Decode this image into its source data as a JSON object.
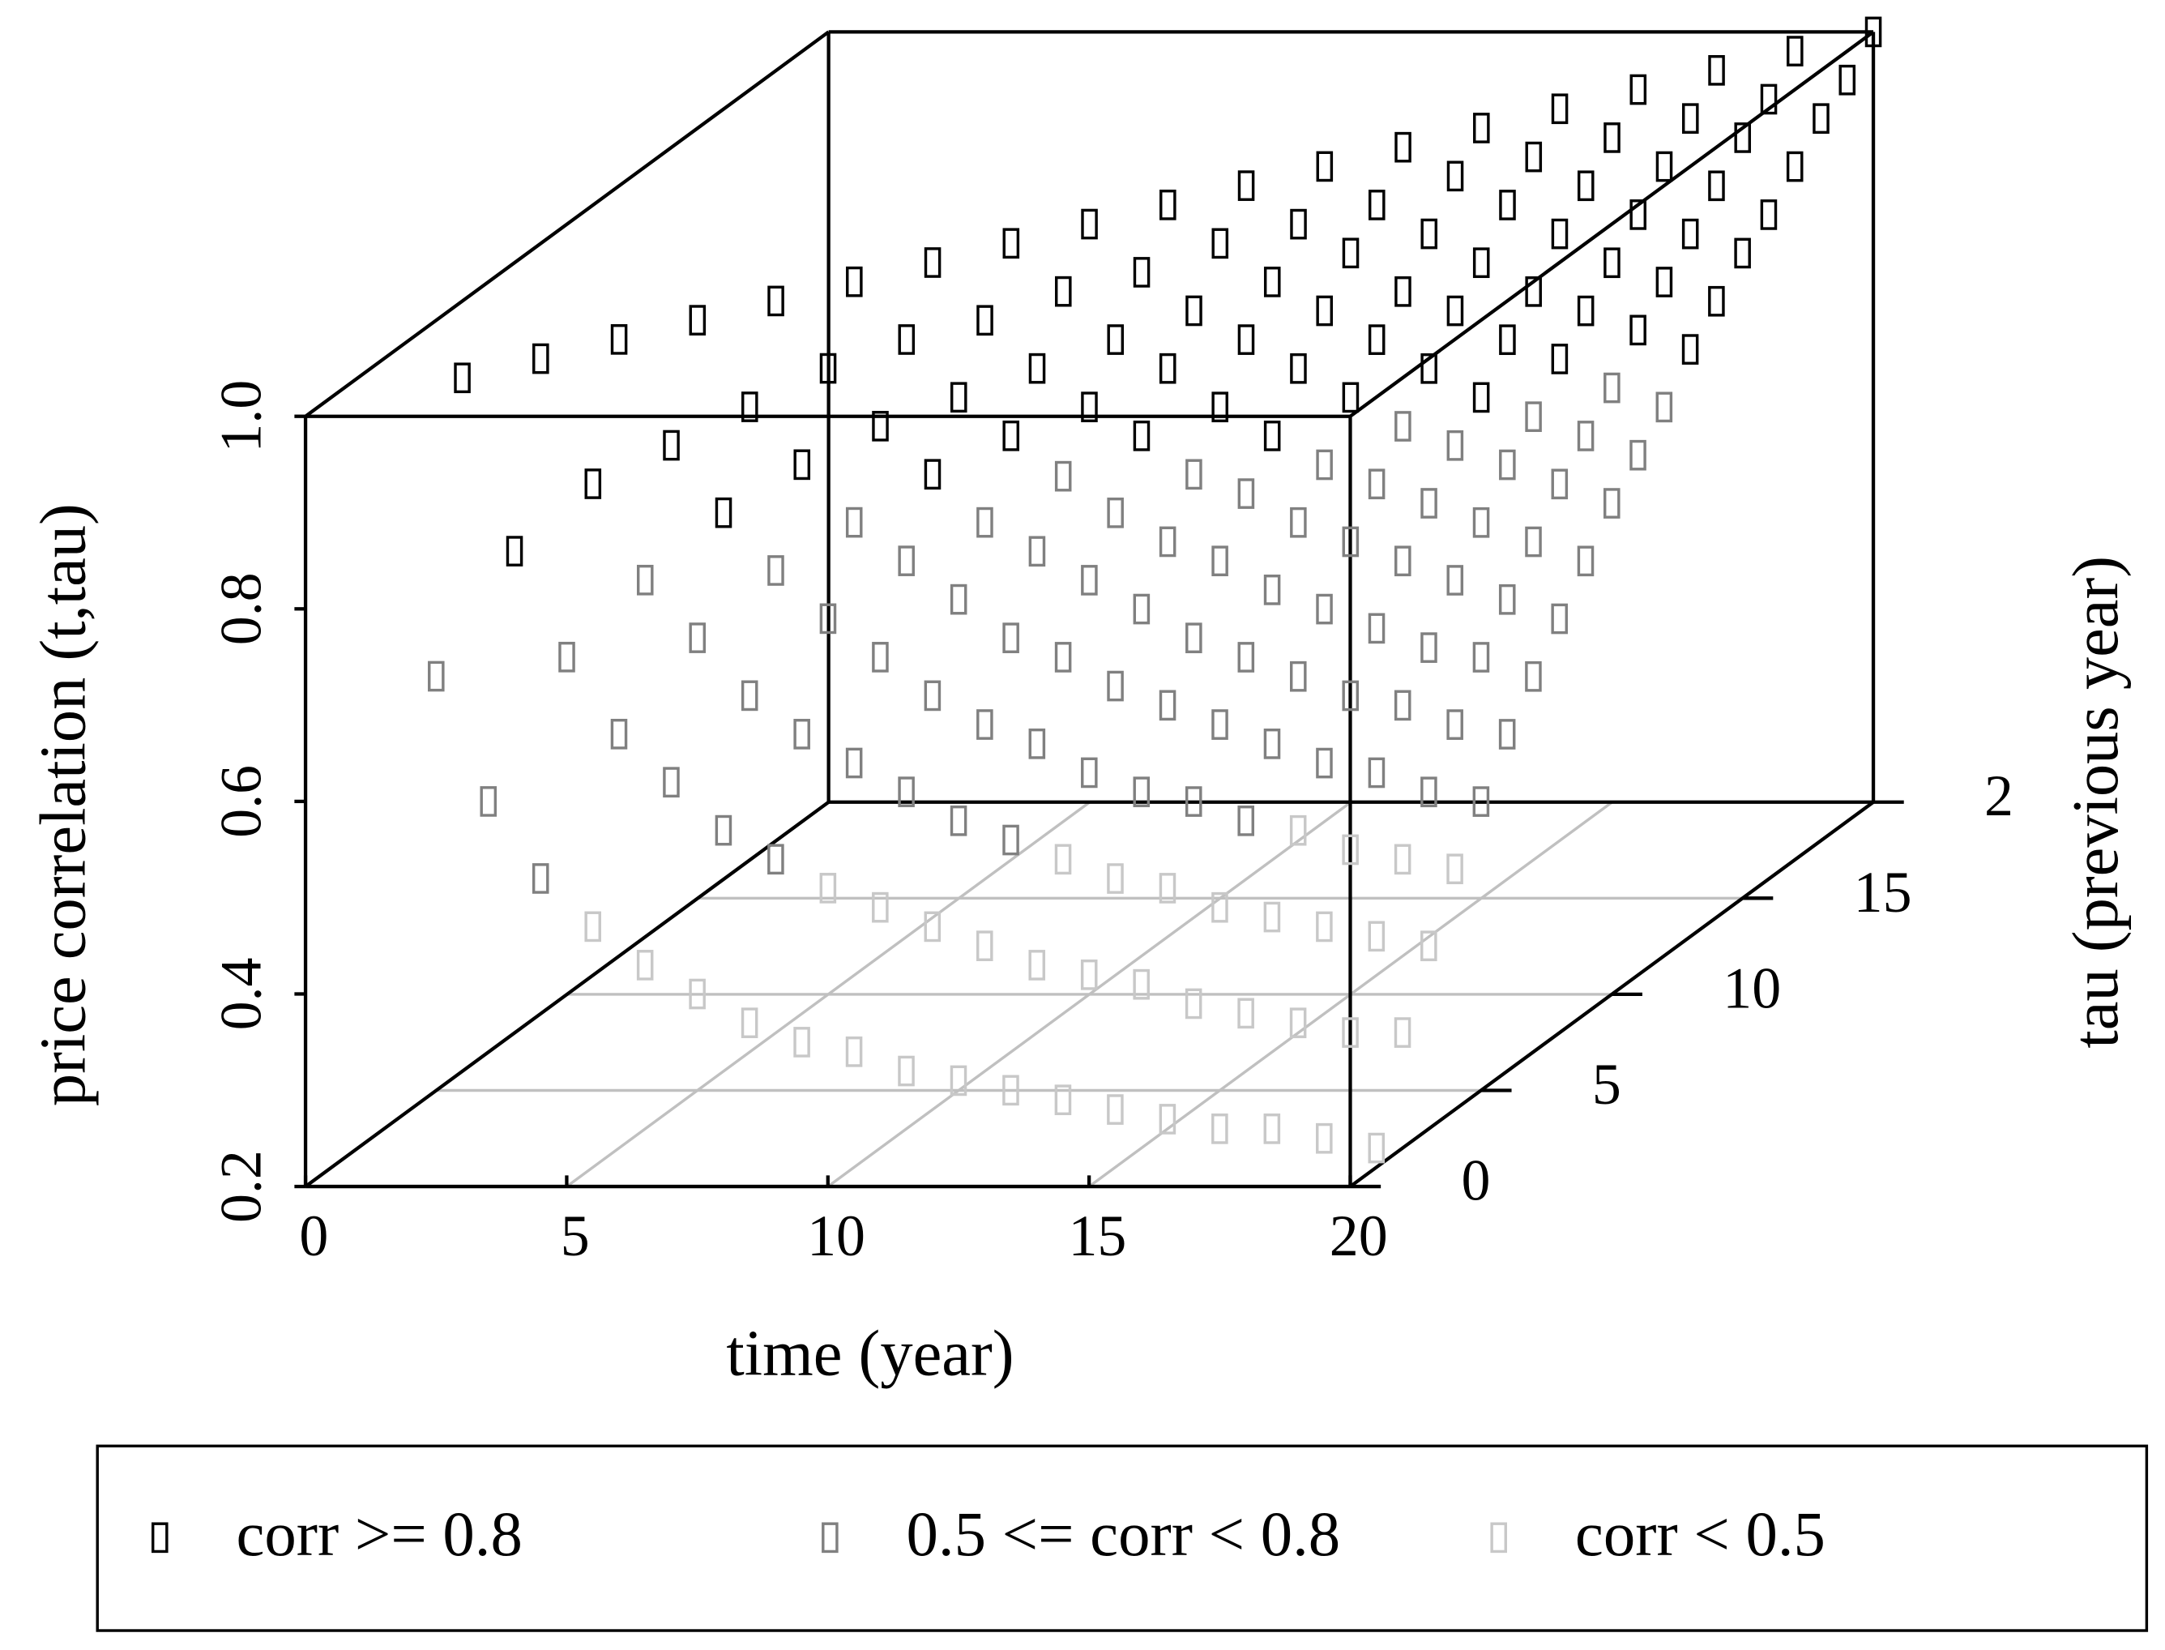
{
  "chart_data": {
    "type": "scatter3d",
    "x_label": "time (year)",
    "y_label": "tau (previous year)",
    "z_label": "price correlation (t,tau)",
    "xlim": [
      0,
      20
    ],
    "ylim": [
      0,
      20
    ],
    "zlim": [
      0.2,
      1
    ],
    "xticks": [
      0,
      5,
      10,
      15,
      20
    ],
    "yticks": [
      0,
      5,
      10,
      15,
      {
        "value": 20,
        "label": "2"
      }
    ],
    "zticks": [
      0.2,
      0.4,
      0.6,
      0.8,
      {
        "value": 1,
        "label": "1.0"
      }
    ],
    "grid": true,
    "legend": "bottom",
    "series": [
      {
        "name": "corr >= 0.8",
        "color": "#000000",
        "x": [
          2,
          3,
          3,
          4,
          4,
          5,
          5,
          6,
          6,
          6,
          7,
          7,
          7,
          8,
          8,
          8,
          9,
          9,
          9,
          9,
          10,
          10,
          10,
          10,
          11,
          11,
          11,
          11,
          12,
          12,
          12,
          12,
          12,
          13,
          13,
          13,
          13,
          13,
          14,
          14,
          14,
          14,
          14,
          14,
          15,
          15,
          15,
          15,
          15,
          15,
          16,
          16,
          16,
          16,
          16,
          16,
          17,
          17,
          17,
          17,
          17,
          17,
          17,
          18,
          18,
          18,
          18,
          18,
          18,
          18,
          19,
          19,
          19,
          19,
          19,
          19,
          19,
          20,
          20,
          20,
          20,
          20,
          20,
          20,
          20
        ],
        "y": [
          2,
          2,
          3,
          3,
          4,
          4,
          5,
          4,
          5,
          6,
          5,
          6,
          7,
          6,
          7,
          8,
          6,
          7,
          8,
          9,
          7,
          8,
          9,
          10,
          8,
          9,
          10,
          11,
          8,
          9,
          10,
          11,
          12,
          9,
          10,
          11,
          12,
          13,
          9,
          10,
          11,
          12,
          13,
          14,
          10,
          11,
          12,
          13,
          14,
          15,
          11,
          12,
          13,
          14,
          15,
          16,
          11,
          12,
          13,
          14,
          15,
          16,
          17,
          12,
          13,
          14,
          15,
          16,
          17,
          18,
          13,
          14,
          15,
          16,
          17,
          18,
          19,
          13,
          14,
          15,
          16,
          17,
          18,
          19,
          20
        ],
        "z": [
          1,
          0.82,
          1,
          0.87,
          1,
          0.89,
          1,
          0.82,
          0.91,
          1,
          0.85,
          0.93,
          1,
          0.87,
          0.94,
          1,
          0.82,
          0.88,
          0.94,
          1,
          0.84,
          0.89,
          0.95,
          1,
          0.85,
          0.9,
          0.95,
          1,
          0.82,
          0.87,
          0.91,
          0.96,
          1,
          0.83,
          0.88,
          0.92,
          0.96,
          1,
          0.8,
          0.85,
          0.89,
          0.93,
          0.96,
          1,
          0.82,
          0.86,
          0.89,
          0.93,
          0.97,
          1,
          0.83,
          0.87,
          0.9,
          0.94,
          0.97,
          1,
          0.8,
          0.84,
          0.87,
          0.91,
          0.94,
          0.97,
          1,
          0.82,
          0.85,
          0.88,
          0.91,
          0.94,
          0.97,
          1,
          0.83,
          0.86,
          0.89,
          0.92,
          0.95,
          0.97,
          1,
          0.81,
          0.84,
          0.87,
          0.89,
          0.92,
          0.95,
          0.97,
          1
        ]
      },
      {
        "name": "0.5 <= corr < 0.8",
        "color": "#808080",
        "x": [
          2,
          3,
          4,
          4,
          5,
          5,
          6,
          6,
          7,
          7,
          7,
          8,
          8,
          8,
          8,
          9,
          9,
          9,
          10,
          10,
          10,
          10,
          11,
          11,
          11,
          11,
          11,
          12,
          12,
          12,
          12,
          12,
          13,
          13,
          13,
          13,
          13,
          14,
          14,
          14,
          14,
          14,
          15,
          15,
          15,
          15,
          15,
          15,
          16,
          16,
          16,
          16,
          16,
          16,
          16,
          17,
          17,
          17,
          17,
          17,
          17,
          18,
          18,
          18,
          18,
          18,
          18,
          18,
          19,
          19,
          19,
          19,
          19,
          19,
          19,
          19,
          20,
          20,
          20,
          20,
          20,
          20,
          20,
          20
        ],
        "y": [
          1,
          1,
          1,
          2,
          2,
          3,
          2,
          3,
          2,
          3,
          4,
          2,
          3,
          4,
          5,
          3,
          4,
          5,
          3,
          4,
          5,
          6,
          3,
          4,
          5,
          6,
          7,
          3,
          4,
          5,
          6,
          7,
          4,
          5,
          6,
          7,
          8,
          4,
          5,
          6,
          7,
          8,
          4,
          5,
          6,
          7,
          8,
          9,
          4,
          5,
          6,
          7,
          8,
          9,
          10,
          5,
          6,
          7,
          8,
          9,
          10,
          5,
          6,
          7,
          8,
          9,
          10,
          11,
          5,
          6,
          7,
          8,
          9,
          10,
          11,
          12,
          5,
          6,
          7,
          8,
          9,
          10,
          11,
          12
        ],
        "z": [
          0.71,
          0.58,
          0.5,
          0.71,
          0.63,
          0.77,
          0.58,
          0.71,
          0.53,
          0.65,
          0.76,
          0.5,
          0.61,
          0.71,
          0.79,
          0.58,
          0.67,
          0.75,
          0.55,
          0.63,
          0.71,
          0.77,
          0.52,
          0.6,
          0.67,
          0.74,
          0.798,
          0.5,
          0.58,
          0.65,
          0.71,
          0.76,
          0.55,
          0.62,
          0.68,
          0.73,
          0.78,
          0.53,
          0.6,
          0.65,
          0.71,
          0.76,
          0.52,
          0.58,
          0.63,
          0.68,
          0.73,
          0.77,
          0.5,
          0.56,
          0.61,
          0.66,
          0.71,
          0.75,
          0.79,
          0.54,
          0.59,
          0.64,
          0.69,
          0.73,
          0.77,
          0.53,
          0.58,
          0.62,
          0.67,
          0.71,
          0.75,
          0.78,
          0.51,
          0.56,
          0.61,
          0.65,
          0.69,
          0.73,
          0.76,
          0.79,
          0.5,
          0.55,
          0.59,
          0.63,
          0.67,
          0.71,
          0.74,
          0.77
        ]
      },
      {
        "name": "corr < 0.5",
        "color": "#c8c8c8",
        "x": [
          5,
          6,
          7,
          8,
          9,
          9,
          10,
          10,
          11,
          11,
          12,
          12,
          13,
          13,
          13,
          14,
          14,
          14,
          15,
          15,
          15,
          16,
          16,
          16,
          17,
          17,
          17,
          17,
          18,
          18,
          18,
          18,
          19,
          19,
          19,
          19,
          20,
          20,
          20,
          20
        ],
        "y": [
          1,
          1,
          1,
          1,
          1,
          2,
          1,
          2,
          1,
          2,
          1,
          2,
          1,
          2,
          3,
          1,
          2,
          3,
          1,
          2,
          3,
          1,
          2,
          3,
          1,
          2,
          3,
          4,
          1,
          2,
          3,
          4,
          1,
          2,
          3,
          4,
          1,
          2,
          3,
          4
        ],
        "z": [
          0.45,
          0.41,
          0.38,
          0.35,
          0.33,
          0.47,
          0.32,
          0.45,
          0.3,
          0.43,
          0.29,
          0.41,
          0.28,
          0.39,
          0.48,
          0.27,
          0.38,
          0.46,
          0.26,
          0.37,
          0.45,
          0.25,
          0.35,
          0.43,
          0.24,
          0.34,
          0.42,
          0.49,
          0.24,
          0.33,
          0.41,
          0.47,
          0.23,
          0.32,
          0.4,
          0.46,
          0.22,
          0.32,
          0.39,
          0.45
        ]
      }
    ]
  }
}
